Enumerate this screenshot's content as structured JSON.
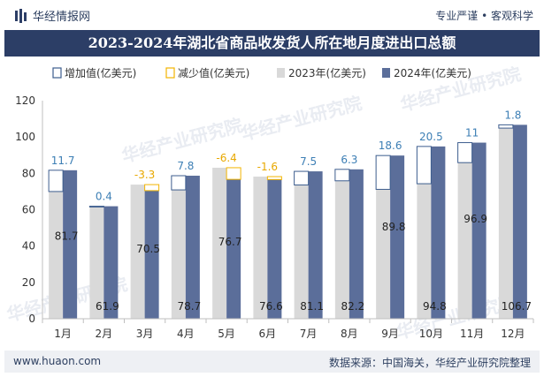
{
  "header": {
    "brand_name": "华经情报网",
    "tagline": "专业严谨 • 客观科学"
  },
  "footer": {
    "website": "www.huaon.com",
    "source": "数据来源：中国海关，华经产业研究院整理"
  },
  "watermark": "华经产业研究院",
  "colors": {
    "increase_outline": "#3d5d8e",
    "decrease_outline": "#f2b400",
    "series_2023": "#d9d9d9",
    "series_2024": "#5b6e9a",
    "increase_label": "#3d7fb5",
    "decrease_label": "#e8a800",
    "title_bg": "#2c3e66"
  },
  "chart_data": {
    "type": "bar",
    "title": "2023-2024年湖北省商品收发货人所在地月度进出口总额",
    "categories": [
      "1月",
      "2月",
      "3月",
      "4月",
      "5月",
      "6月",
      "7月",
      "8月",
      "9月",
      "10月",
      "11月",
      "12月"
    ],
    "series": [
      {
        "name": "2023年(亿美元)",
        "values": [
          70.0,
          61.5,
          73.8,
          70.9,
          83.1,
          78.2,
          73.6,
          75.9,
          71.2,
          74.3,
          85.9,
          104.9
        ]
      },
      {
        "name": "2024年(亿美元)",
        "values": [
          81.7,
          61.9,
          70.5,
          78.7,
          76.7,
          76.6,
          81.1,
          82.2,
          89.8,
          94.8,
          96.9,
          106.7
        ]
      }
    ],
    "change_legend": {
      "increase": "增加值(亿美元)",
      "decrease": "减少值(亿美元)"
    },
    "change_labels": [
      "11.7",
      "0.4",
      "-3.3",
      "7.8",
      "-6.4",
      "-1.6",
      "7.5",
      "6.3",
      "18.6",
      "20.5",
      "11",
      "1.8"
    ],
    "value_labels_2024": [
      "81.7",
      "61.9",
      "70.5",
      "78.7",
      "76.7",
      "76.6",
      "81.1",
      "82.2",
      "89.8",
      "94.8",
      "96.9",
      "106.7"
    ],
    "y_ticks": [
      "0",
      "20",
      "40",
      "60",
      "80",
      "100",
      "120"
    ],
    "ylim": [
      0,
      120
    ],
    "grid": false,
    "legend_position": "top-left"
  }
}
